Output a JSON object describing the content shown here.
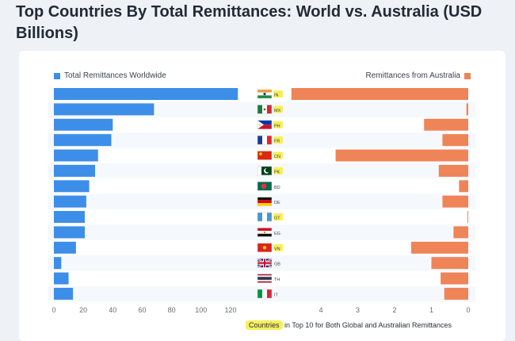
{
  "title": "Top Countries By Total Remittances: World vs. Australia (USD Billions)",
  "legend": {
    "left": "Total Remittances Worldwide",
    "right": "Remittances from Australia"
  },
  "footnote": {
    "highlight": "Countries",
    "rest": "in Top 10 for Both Global and Australian Remittances"
  },
  "colors": {
    "worldwide": "#3d8ee8",
    "australia": "#ef8458",
    "highlight": "#f7ef5a",
    "row_stripe": "#f5f8fc"
  },
  "chart_data": {
    "type": "bar",
    "categories": [
      "IN",
      "MX",
      "PH",
      "FR",
      "CN",
      "PK",
      "BD",
      "DE",
      "GT",
      "EG",
      "VN",
      "GB",
      "TH",
      "IT"
    ],
    "highlighted_categories": [
      "IN",
      "MX",
      "PH",
      "FR",
      "CN",
      "PK",
      "GT",
      "VN"
    ],
    "series": [
      {
        "name": "Total Remittances Worldwide",
        "values": [
          125,
          68,
          40,
          39,
          30,
          28,
          24,
          22,
          21,
          21,
          15,
          5,
          10,
          13
        ]
      },
      {
        "name": "Remittances from Australia",
        "values": [
          4.8,
          0.05,
          1.2,
          0.7,
          3.6,
          0.8,
          0.25,
          0.7,
          0.02,
          0.4,
          1.55,
          1.0,
          0.75,
          0.65
        ]
      }
    ],
    "left_axis": {
      "ticks": [
        0,
        20,
        40,
        60,
        80,
        100,
        120
      ],
      "range": [
        0,
        125
      ]
    },
    "right_axis": {
      "ticks": [
        4,
        3,
        2,
        1,
        0
      ],
      "range": [
        0,
        4.8
      ],
      "reversed": true
    }
  }
}
